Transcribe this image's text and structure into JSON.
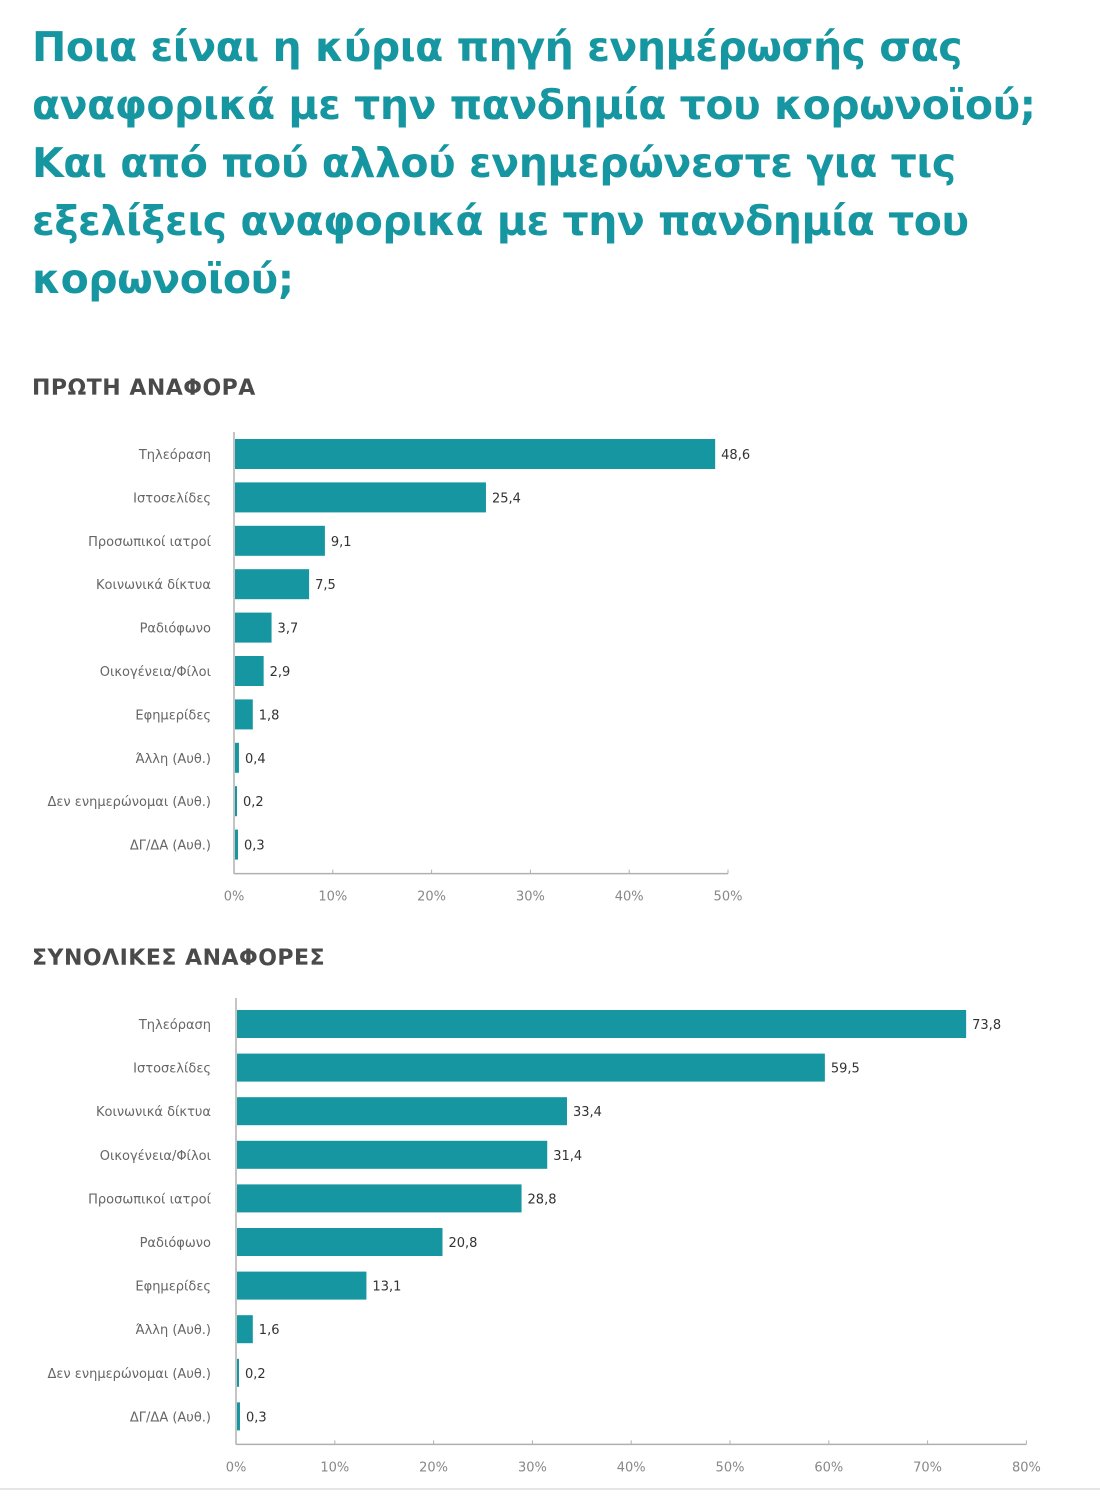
{
  "title": "Ποια είναι η κύρια πηγή ενημέρωσής σας αναφορικά με την πανδημία του κορωνοϊού; Και από πού αλλού ενημερώνεστε για τις εξελίξεις αναφορικά με την πανδημία του κορωνοϊού;",
  "colors": {
    "title": "#1596a0",
    "bar": "#1596a0",
    "axis": "#b0b0b0"
  },
  "chart_data": [
    {
      "type": "bar",
      "orientation": "horizontal",
      "title": "ΠΡΩΤΗ ΑΝΑΦΟΡΑ",
      "categories": [
        "Τηλεόραση",
        "Ιστοσελίδες",
        "Προσωπικοί ιατροί",
        "Κοινωνικά δίκτυα",
        "Ραδιόφωνο",
        "Οικογένεια/Φίλοι",
        "Εφημερίδες",
        "Άλλη (Αυθ.)",
        "Δεν ενημερώνομαι (Αυθ.)",
        "ΔΓ/ΔΑ (Αυθ.)"
      ],
      "values": [
        48.6,
        25.4,
        9.1,
        7.5,
        3.7,
        2.9,
        1.8,
        0.4,
        0.2,
        0.3
      ],
      "value_labels": [
        "48,6",
        "25,4",
        "9,1",
        "7,5",
        "3,7",
        "2,9",
        "1,8",
        "0,4",
        "0,2",
        "0,3"
      ],
      "xlim": [
        0,
        50
      ],
      "xticks": [
        0,
        10,
        20,
        30,
        40,
        50
      ],
      "xtick_labels": [
        "0%",
        "10%",
        "20%",
        "30%",
        "40%",
        "50%"
      ],
      "xlabel": "",
      "ylabel": "",
      "grid": false
    },
    {
      "type": "bar",
      "orientation": "horizontal",
      "title": "ΣΥΝΟΛΙΚΕΣ ΑΝΑΦΟΡΕΣ",
      "categories": [
        "Τηλεόραση",
        "Ιστοσελίδες",
        "Κοινωνικά δίκτυα",
        "Οικογένεια/Φίλοι",
        "Προσωπικοί ιατροί",
        "Ραδιόφωνο",
        "Εφημερίδες",
        "Άλλη (Αυθ.)",
        "Δεν ενημερώνομαι (Αυθ.)",
        "ΔΓ/ΔΑ (Αυθ.)"
      ],
      "values": [
        73.8,
        59.5,
        33.4,
        31.4,
        28.8,
        20.8,
        13.1,
        1.6,
        0.2,
        0.3
      ],
      "value_labels": [
        "73,8",
        "59,5",
        "33,4",
        "31,4",
        "28,8",
        "20,8",
        "13,1",
        "1,6",
        "0,2",
        "0,3"
      ],
      "xlim": [
        0,
        80
      ],
      "xticks": [
        0,
        10,
        20,
        30,
        40,
        50,
        60,
        70,
        80
      ],
      "xtick_labels": [
        "0%",
        "10%",
        "20%",
        "30%",
        "40%",
        "50%",
        "60%",
        "70%",
        "80%"
      ],
      "xlabel": "",
      "ylabel": "",
      "grid": false
    }
  ]
}
